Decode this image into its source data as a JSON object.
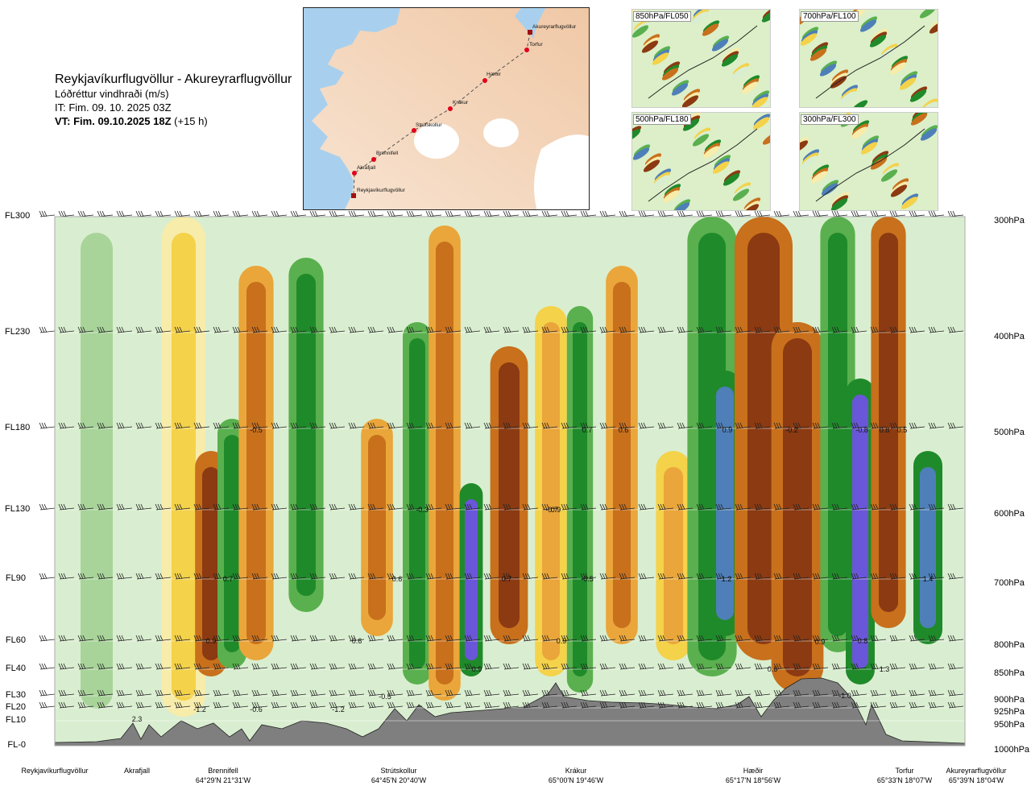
{
  "header": {
    "route_title": "Reykjavíkurflugvöllur - Akureyrarflugvöllur",
    "variable_label": "Lóðréttur vindhraði (m/s)",
    "it_label": "IT: Fim. 09. 10. 2025 03Z",
    "vt_bold": "VT: Fim. 09.10.2025 18Z",
    "vt_suffix": " (+15 h)"
  },
  "route_map": {
    "waypoints": [
      {
        "name": "Akureyrarflugvöllur",
        "airport": true
      },
      {
        "name": "Torfur",
        "airport": false
      },
      {
        "name": "Hæðir",
        "airport": false
      },
      {
        "name": "Krákur",
        "airport": false
      },
      {
        "name": "Strútskollur",
        "airport": false
      },
      {
        "name": "Brennifell",
        "airport": false
      },
      {
        "name": "Akrafjall",
        "airport": false
      },
      {
        "name": "Reykjavíkurflugvöllur",
        "airport": true
      }
    ],
    "colors": {
      "sea": "#a8d0ee",
      "land": "#f3ddc8",
      "ice": "#ffffff",
      "route": "#555555",
      "point": "#e0001a"
    }
  },
  "level_maps": [
    {
      "label": "850hPa/FL050"
    },
    {
      "label": "700hPa/FL100"
    },
    {
      "label": "500hPa/FL180"
    },
    {
      "label": "300hPa/FL300"
    }
  ],
  "chart_data": {
    "type": "heatmap",
    "title": "Lóðréttur vindhraði (m/s)",
    "y_left_ticks": [
      "FL300",
      "FL230",
      "FL180",
      "FL130",
      "FL90",
      "FL60",
      "FL40",
      "FL30",
      "FL20",
      "FL10",
      "FL-0"
    ],
    "y_right_ticks": [
      "300hPa",
      "400hPa",
      "500hPa",
      "600hPa",
      "700hPa",
      "800hPa",
      "850hPa",
      "900hPa",
      "925hPa",
      "950hPa",
      "1000hPa"
    ],
    "x_ticks": [
      {
        "name": "Reykjavíkurflugvöllur",
        "coord": ""
      },
      {
        "name": "Akrafjall",
        "coord": ""
      },
      {
        "name": "Brennifell",
        "coord": "64°29'N 21°31'W"
      },
      {
        "name": "Strútskollur",
        "coord": "64°45'N 20°40'W"
      },
      {
        "name": "Krákur",
        "coord": "65°00'N 19°46'W"
      },
      {
        "name": "Hæðir",
        "coord": "65°17'N 18°56'W"
      },
      {
        "name": "Torfur",
        "coord": "65°33'N 18°07'W"
      },
      {
        "name": "Akureyrarflugvöllur",
        "coord": "65°39'N 18°04'W"
      }
    ],
    "palette": {
      "strong_down": "#8b3a12",
      "down": "#c8701c",
      "weak_down": "#eaa63a",
      "slight_down": "#f4d24a",
      "faint_down": "#f7ecaa",
      "neutral": "#d9eed0",
      "faint_up": "#a8d49a",
      "weak_up": "#5ab04e",
      "up": "#1f8a2a",
      "strong_up": "#4e7fb8",
      "very_strong_up": "#6a56d8",
      "terrain": "#7f7f7f"
    },
    "annotations": [
      "-0.5",
      "0.7",
      "0.9",
      "-1.2",
      "-0.6",
      "-1.2",
      "-0.3",
      "0.6",
      "0.6",
      "-0.5",
      "0.7",
      "-0.7",
      "0.9",
      "-0.5",
      "0.7",
      "0.6",
      "0.9",
      "1.2",
      "0.9",
      "-0.2",
      "0.6",
      "0.9",
      "-0.8",
      "0.8",
      "-1.0",
      "1.3",
      "0.5",
      "1.4",
      "2.3",
      "0.8",
      "0.9"
    ]
  }
}
